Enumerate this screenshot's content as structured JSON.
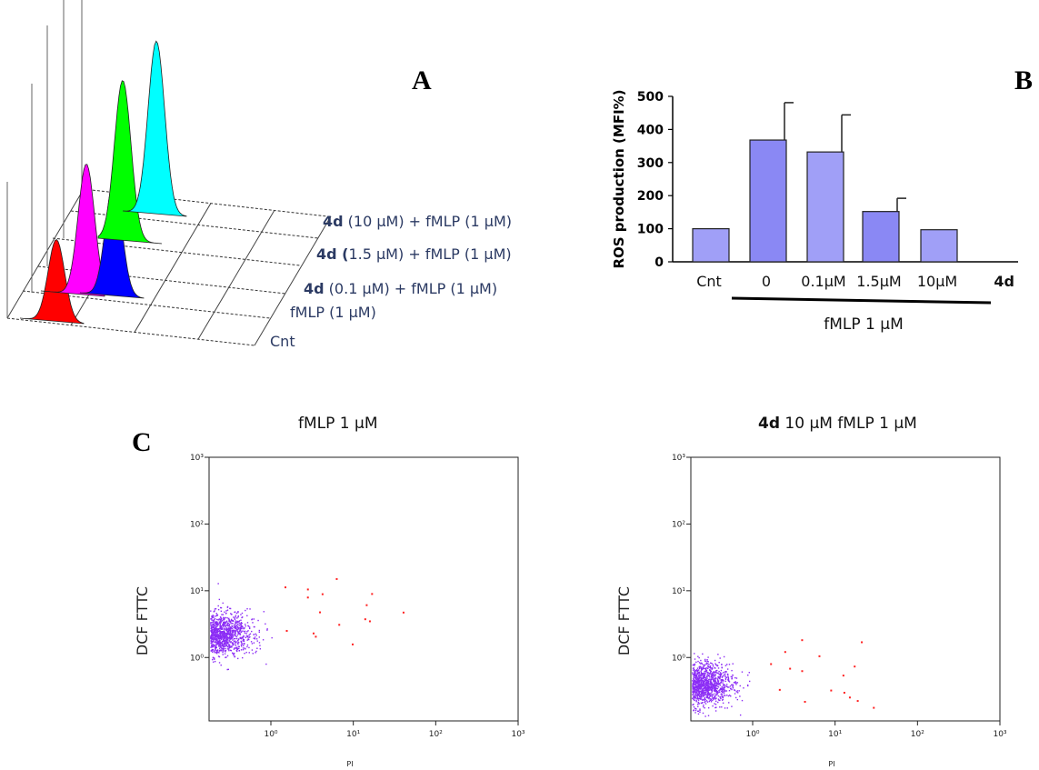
{
  "panels": {
    "a": "A",
    "b": "B",
    "c": "C"
  },
  "chart_data": [
    {
      "type": "area",
      "panel": "A",
      "description_free": true,
      "series": [
        {
          "name": "Cnt",
          "color": "#ff0000",
          "peak": 0.45
        },
        {
          "name": "fMLP (1 µM)",
          "color": "#ff00ff",
          "peak": 0.72
        },
        {
          "name": "4d (0.1 µM) + fMLP (1 µM)",
          "color": "#0000ff",
          "peak": 0.62
        },
        {
          "name": "4d (1.5 µM) + fMLP (1 µM)",
          "color": "#00ff00",
          "peak": 0.88
        },
        {
          "name": "4d (10 µM) + fMLP (1 µM)",
          "color": "#00ffff",
          "peak": 0.95
        }
      ],
      "labels": {
        "l1_bold": "4d",
        "l1_rest": " (10 µM) + fMLP (1 µM)",
        "l2_bold": "4d (",
        "l2_rest": "1.5 µM) + fMLP (1 µM)",
        "l3_bold": "4d",
        "l3_rest": "  (0.1 µM) + fMLP (1 µM)",
        "l4": "fMLP (1 µM)",
        "l5": "Cnt"
      }
    },
    {
      "type": "bar",
      "panel": "B",
      "categories": [
        "Cnt",
        "0",
        "0.1µM",
        "1.5µM",
        "10µM"
      ],
      "values": [
        100,
        368,
        332,
        152,
        97
      ],
      "errors": [
        0,
        113,
        112,
        40,
        0
      ],
      "ylabel": "ROS production (MFI%)",
      "ylim": [
        0,
        500
      ],
      "yticks": [
        "0",
        "100",
        "200",
        "300",
        "400",
        "500"
      ],
      "compound_label": "4d",
      "treatment_label": "fMLP 1 µM",
      "bar_color": "#9999ff"
    },
    {
      "type": "scatter",
      "panel": "C",
      "title": "fMLP 1 µM",
      "xlabel": "PI",
      "ylabel": "DCF FTTC",
      "scale": "log",
      "center": [
        0.2,
        2.3
      ],
      "main_color": "#8b2cf5",
      "outlier_color": "#ff2020"
    },
    {
      "type": "scatter",
      "panel": "C",
      "title_bold": "4d",
      "title_rest": "  10 µM fMLP 1 µM",
      "xlabel": "PI",
      "ylabel": "DCF FTTC",
      "scale": "log",
      "center": [
        0.2,
        0.4
      ],
      "main_color": "#8b2cf5",
      "outlier_color": "#ff2020"
    }
  ]
}
